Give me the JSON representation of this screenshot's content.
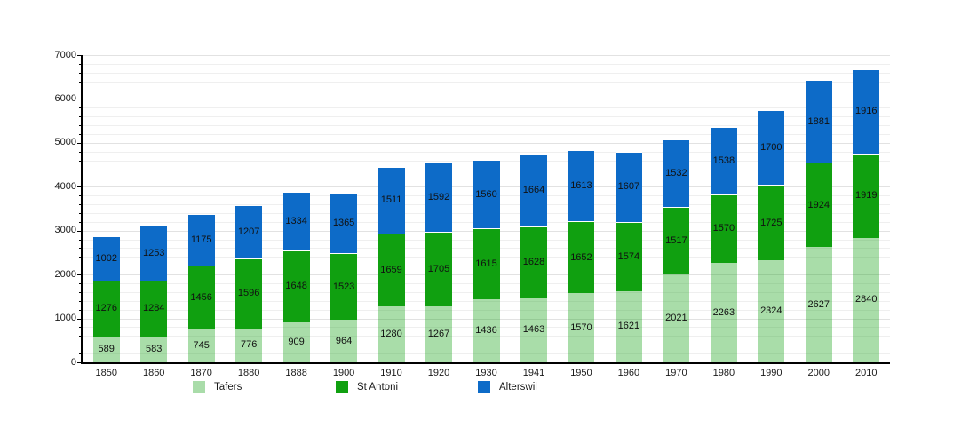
{
  "chart_data": {
    "type": "bar",
    "stacked": true,
    "title": "",
    "xlabel": "",
    "ylabel": "",
    "categories": [
      "1850",
      "1860",
      "1870",
      "1880",
      "1888",
      "1900",
      "1910",
      "1920",
      "1930",
      "1941",
      "1950",
      "1960",
      "1970",
      "1980",
      "1990",
      "2000",
      "2010"
    ],
    "series": [
      {
        "name": "Tafers",
        "legend_color": "#a9dca9",
        "fill": "rgba(17,160,17,0.36)",
        "values": [
          589,
          583,
          745,
          776,
          909,
          964,
          1280,
          1267,
          1436,
          1463,
          1570,
          1621,
          2021,
          2263,
          2324,
          2627,
          2840
        ]
      },
      {
        "name": "St Antoni",
        "legend_color": "#10a010",
        "fill": "#10a010",
        "values": [
          1276,
          1284,
          1456,
          1596,
          1648,
          1523,
          1659,
          1705,
          1615,
          1628,
          1652,
          1574,
          1517,
          1570,
          1725,
          1924,
          1919
        ]
      },
      {
        "name": "Alterswil",
        "legend_color": "#0d6bc8",
        "fill": "#0d6bc8",
        "values": [
          1002,
          1253,
          1175,
          1207,
          1334,
          1365,
          1511,
          1592,
          1560,
          1664,
          1613,
          1607,
          1532,
          1538,
          1700,
          1881,
          1916
        ]
      }
    ],
    "ylim": [
      0,
      7000
    ],
    "y_major_step": 1000,
    "y_minor_step": 200,
    "y_tick_labels": [
      "0",
      "1000",
      "2000",
      "3000",
      "4000",
      "5000",
      "6000",
      "7000"
    ],
    "grid": true,
    "legend_position": "bottom",
    "value_labels_shown": true
  },
  "legend": {
    "items": [
      {
        "label": "Tafers"
      },
      {
        "label": "St Antoni"
      },
      {
        "label": "Alterswil"
      }
    ]
  }
}
